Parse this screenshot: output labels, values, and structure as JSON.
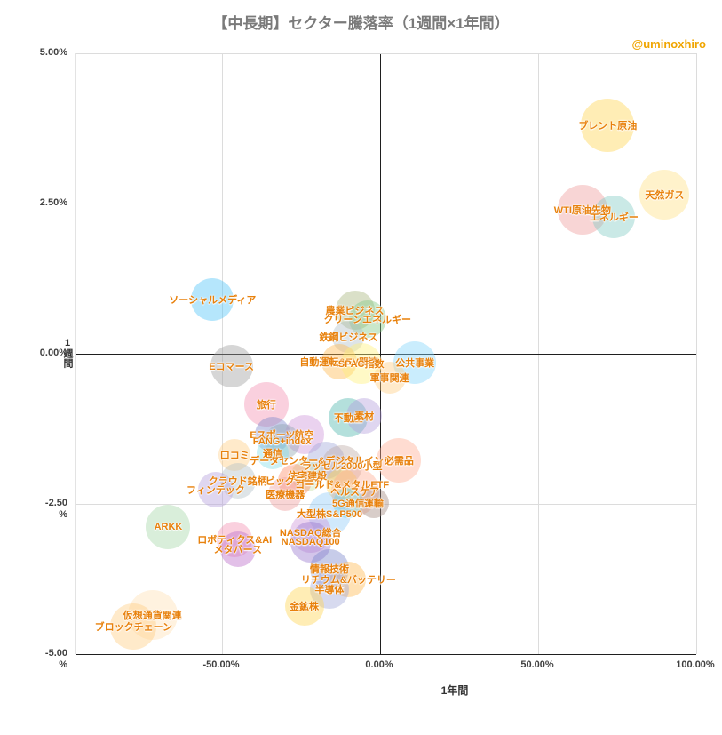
{
  "page": {
    "watermark": "@uminoxhiro"
  },
  "colors": {
    "bubble_label": "#e8810c",
    "watermark": "#f0a500",
    "title": "#7a7a7a",
    "axis_text": "#404040",
    "grid": "#dcdcdc",
    "zero_line": "#1f1f1f"
  },
  "chart_data": {
    "type": "scatter",
    "subtype": "bubble",
    "title": "【中長期】セクター騰落率（1週間×1年間）",
    "grid": true,
    "legend": false,
    "x_axis": {
      "label": "1年間",
      "unit": "%",
      "range": [
        -96,
        100
      ],
      "ticks": [
        {
          "value": -50,
          "label": "-50.00%"
        },
        {
          "value": 0,
          "label": "0.00%"
        },
        {
          "value": 50,
          "label": "50.00%"
        },
        {
          "value": 100,
          "label": "100.00%"
        }
      ]
    },
    "y_axis": {
      "label": "1週間",
      "unit": "%",
      "range": [
        -5,
        5
      ],
      "ticks": [
        {
          "value": 5,
          "label": "5.00%"
        },
        {
          "value": 2.5,
          "label": "2.50%"
        },
        {
          "value": 0,
          "label": "0.00%"
        },
        {
          "value": -2.5,
          "label": "-2.50\n%"
        },
        {
          "value": -5,
          "label": "-5.00\n%"
        }
      ]
    },
    "points": [
      {
        "name": "ブレント原油",
        "x": 72,
        "y": 3.8,
        "r": 30,
        "color": "#ffd54f"
      },
      {
        "name": "天然ガス",
        "x": 90,
        "y": 2.65,
        "r": 28,
        "color": "#ffe082"
      },
      {
        "name": "WTI原油先物",
        "x": 64,
        "y": 2.4,
        "r": 28,
        "color": "#ef9a9a"
      },
      {
        "name": "エネルギー",
        "x": 74,
        "y": 2.28,
        "r": 24,
        "color": "#80cbc4"
      },
      {
        "name": "ソーシャルメディア",
        "x": -53,
        "y": 0.9,
        "r": 24,
        "color": "#4fc3f7"
      },
      {
        "name": "農業ビジネス",
        "x": -8,
        "y": 0.72,
        "r": 22,
        "color": "#a8b47c"
      },
      {
        "name": "クリーンエネルギー",
        "x": -4,
        "y": 0.58,
        "r": 21,
        "color": "#81c784"
      },
      {
        "name": "鉄鋼ビジネス",
        "x": -10,
        "y": 0.28,
        "r": 18,
        "color": "#b0bec5"
      },
      {
        "name": "Eコマース",
        "x": -47,
        "y": -0.2,
        "r": 24,
        "color": "#9e9e9e"
      },
      {
        "name": "自動運転&EV関連",
        "x": -13,
        "y": -0.13,
        "r": 20,
        "color": "#ffb74d"
      },
      {
        "name": "SPAC指数",
        "x": -6,
        "y": -0.16,
        "r": 23,
        "color": "#fff176"
      },
      {
        "name": "公共事業",
        "x": 11,
        "y": -0.15,
        "r": 24,
        "color": "#81d4fa"
      },
      {
        "name": "軍事関連",
        "x": 3,
        "y": -0.4,
        "r": 18,
        "color": "#ffcc80"
      },
      {
        "name": "旅行",
        "x": -36,
        "y": -0.84,
        "r": 25,
        "color": "#f48fb1"
      },
      {
        "name": "不動産",
        "x": -10,
        "y": -1.07,
        "r": 22,
        "color": "#4db6ac"
      },
      {
        "name": "素材",
        "x": -5,
        "y": -1.04,
        "r": 20,
        "color": "#b39ddb"
      },
      {
        "name": "Eスポーツ",
        "x": -34,
        "y": -1.35,
        "r": 20,
        "color": "#7986cb"
      },
      {
        "name": "航空",
        "x": -24,
        "y": -1.35,
        "r": 22,
        "color": "#ce93d8"
      },
      {
        "name": "FANG+index",
        "x": -31,
        "y": -1.46,
        "r": 20,
        "color": "#90a4ae"
      },
      {
        "name": "口コミ",
        "x": -46,
        "y": -1.69,
        "r": 18,
        "color": "#ffcc80"
      },
      {
        "name": "通信",
        "x": -34,
        "y": -1.66,
        "r": 18,
        "color": "#80deea"
      },
      {
        "name": "データセンター&デジタルインフラ",
        "x": -17,
        "y": -1.78,
        "r": 21,
        "color": "#9fa8da"
      },
      {
        "name": "必需品",
        "x": 6,
        "y": -1.78,
        "r": 25,
        "color": "#ffab91"
      },
      {
        "name": "ラッセル2000小型",
        "x": -12,
        "y": -1.86,
        "r": 23,
        "color": "#bcaaa4"
      },
      {
        "name": "住宅建設",
        "x": -23,
        "y": -2.03,
        "r": 18,
        "color": "#c5e1a5"
      },
      {
        "name": "クラウド銘柄",
        "x": -45,
        "y": -2.12,
        "r": 20,
        "color": "#b0bec5"
      },
      {
        "name": "ビッグデータ",
        "x": -27,
        "y": -2.12,
        "r": 19,
        "color": "#ff8a65"
      },
      {
        "name": "ゴールド&メタルETF",
        "x": -12,
        "y": -2.17,
        "r": 18,
        "color": "#ffd54f"
      },
      {
        "name": "フィンテック",
        "x": -52,
        "y": -2.26,
        "r": 20,
        "color": "#b39ddb"
      },
      {
        "name": "医療機器",
        "x": -30,
        "y": -2.34,
        "r": 19,
        "color": "#ef9a9a"
      },
      {
        "name": "ヘルスケア",
        "x": -8,
        "y": -2.29,
        "r": 27,
        "color": "#ffab91"
      },
      {
        "name": "5G通信",
        "x": -10,
        "y": -2.49,
        "r": 17,
        "color": "#4dd0e1"
      },
      {
        "name": "運輸",
        "x": -2,
        "y": -2.49,
        "r": 17,
        "color": "#a1887f"
      },
      {
        "name": "大型株S&P500",
        "x": -16,
        "y": -2.66,
        "r": 24,
        "color": "#90caf9"
      },
      {
        "name": "ARKK",
        "x": -67,
        "y": -2.88,
        "r": 25,
        "color": "#a5d6a7"
      },
      {
        "name": "NASDAQ総合",
        "x": -22,
        "y": -2.97,
        "r": 23,
        "color": "#ce93d8"
      },
      {
        "name": "NASDAQ100",
        "x": -22,
        "y": -3.14,
        "r": 23,
        "color": "#9575cd"
      },
      {
        "name": "ロボティクス&AI",
        "x": -46,
        "y": -3.09,
        "r": 20,
        "color": "#f48fb1"
      },
      {
        "name": "メタバース",
        "x": -45,
        "y": -3.25,
        "r": 20,
        "color": "#ba68c8"
      },
      {
        "name": "情報技術",
        "x": -16,
        "y": -3.58,
        "r": 22,
        "color": "#7986cb"
      },
      {
        "name": "リチウム&バッテリー",
        "x": -10,
        "y": -3.76,
        "r": 20,
        "color": "#ffb74d"
      },
      {
        "name": "半導体",
        "x": -16,
        "y": -3.92,
        "r": 22,
        "color": "#9fa8da"
      },
      {
        "name": "金鉱株",
        "x": -24,
        "y": -4.2,
        "r": 22,
        "color": "#ffd54f"
      },
      {
        "name": "仮想通貨関連",
        "x": -72,
        "y": -4.35,
        "r": 28,
        "color": "#ffe0b2"
      },
      {
        "name": "ブロックチェーン",
        "x": -78,
        "y": -4.54,
        "r": 26,
        "color": "#ffcc80"
      }
    ]
  }
}
